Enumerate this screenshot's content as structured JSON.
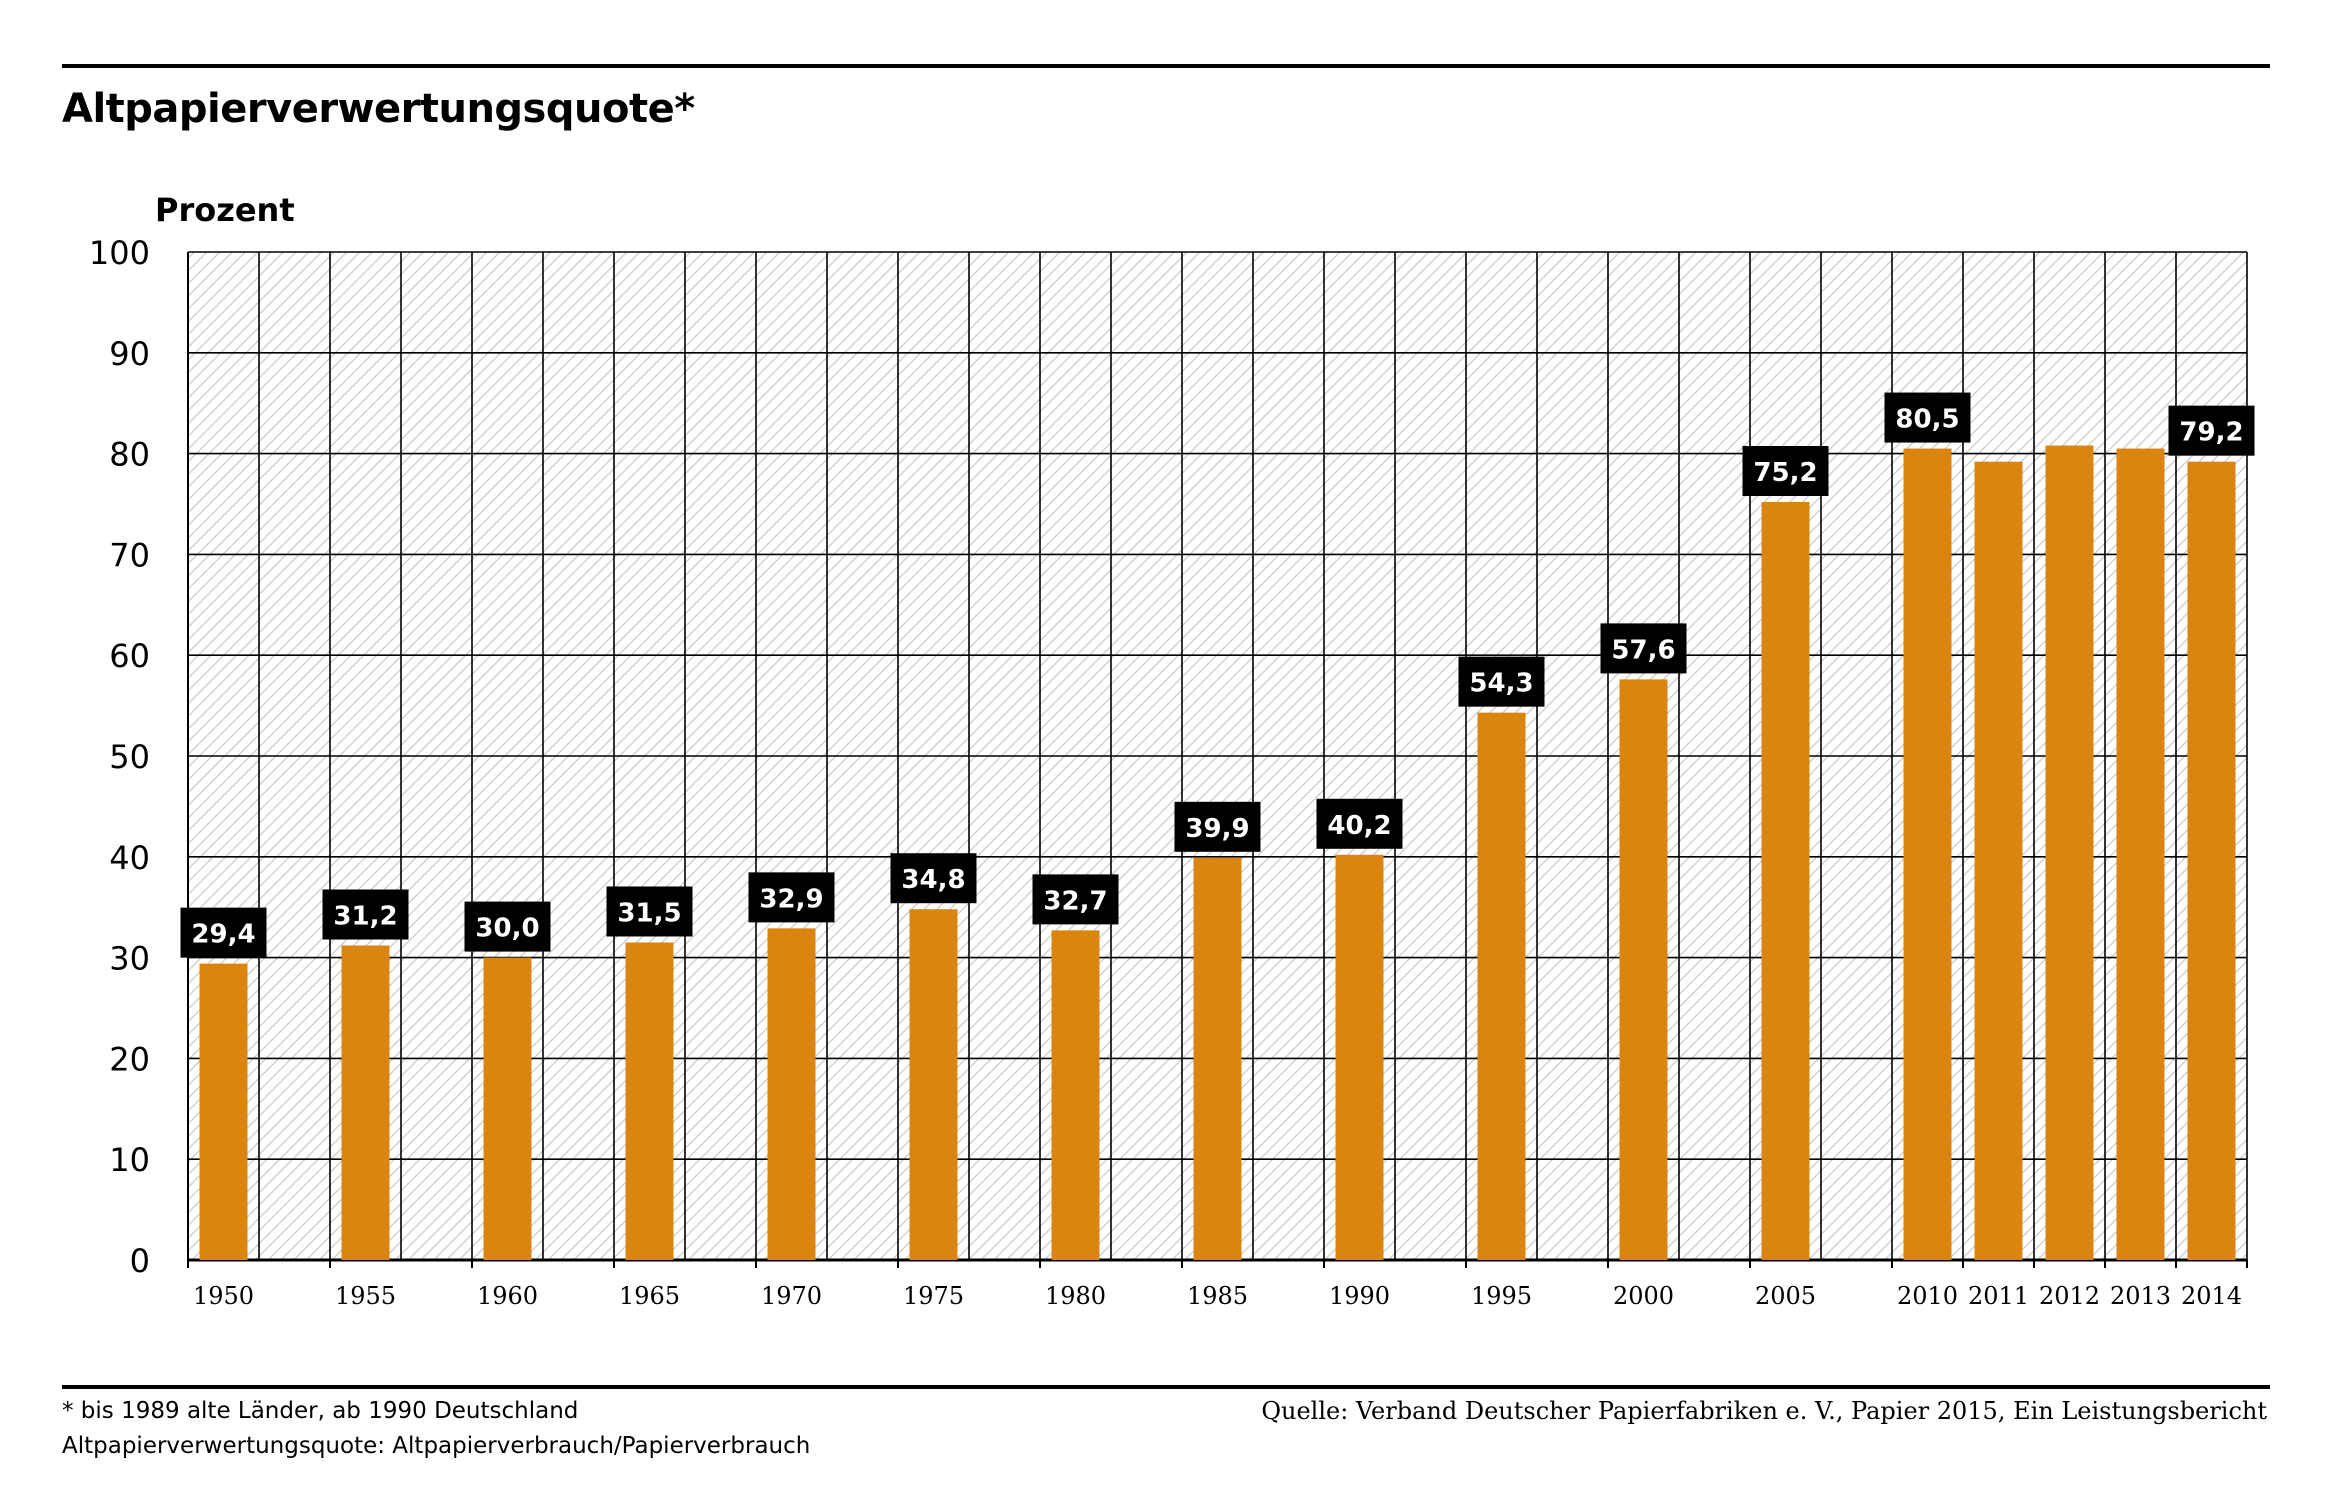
{
  "title": "Altpapierverwertungsquote*",
  "footnote": {
    "line1": "* bis 1989 alte Länder, ab 1990 Deutschland",
    "line2": "Altpapierverwertungsquote: Altpapierverbrauch/Papierverbrauch",
    "source": "Quelle: Verband Deutscher Papierfabriken e. V., Papier 2015, Ein Leistungsbericht"
  },
  "colors": {
    "bar": "#d9850f",
    "label_bg": "#000000",
    "label_text": "#ffffff",
    "grid": "#000000",
    "hatch": "#c4c4c4"
  },
  "chart_data": {
    "type": "bar",
    "title": "Altpapierverwertungsquote*",
    "ylabel": "Prozent",
    "xlabel": "",
    "ylim": [
      0,
      100
    ],
    "yticks": [
      0,
      10,
      20,
      30,
      40,
      50,
      60,
      70,
      80,
      90,
      100
    ],
    "grid": true,
    "categories": [
      "1950",
      "1955",
      "1960",
      "1965",
      "1970",
      "1975",
      "1980",
      "1985",
      "1990",
      "1995",
      "2000",
      "2005",
      "2010",
      "2011",
      "2012",
      "2013",
      "2014"
    ],
    "values": [
      29.4,
      31.2,
      30.0,
      31.5,
      32.9,
      34.8,
      32.7,
      39.9,
      40.2,
      54.3,
      57.6,
      75.2,
      80.5,
      79.2,
      80.8,
      80.5,
      79.2
    ],
    "data_labels": [
      "29,4",
      "31,2",
      "30,0",
      "31,5",
      "32,9",
      "34,8",
      "32,7",
      "39,9",
      "40,2",
      "54,3",
      "57,6",
      "75,2",
      "80,5",
      "",
      "",
      "",
      "79,2"
    ]
  }
}
